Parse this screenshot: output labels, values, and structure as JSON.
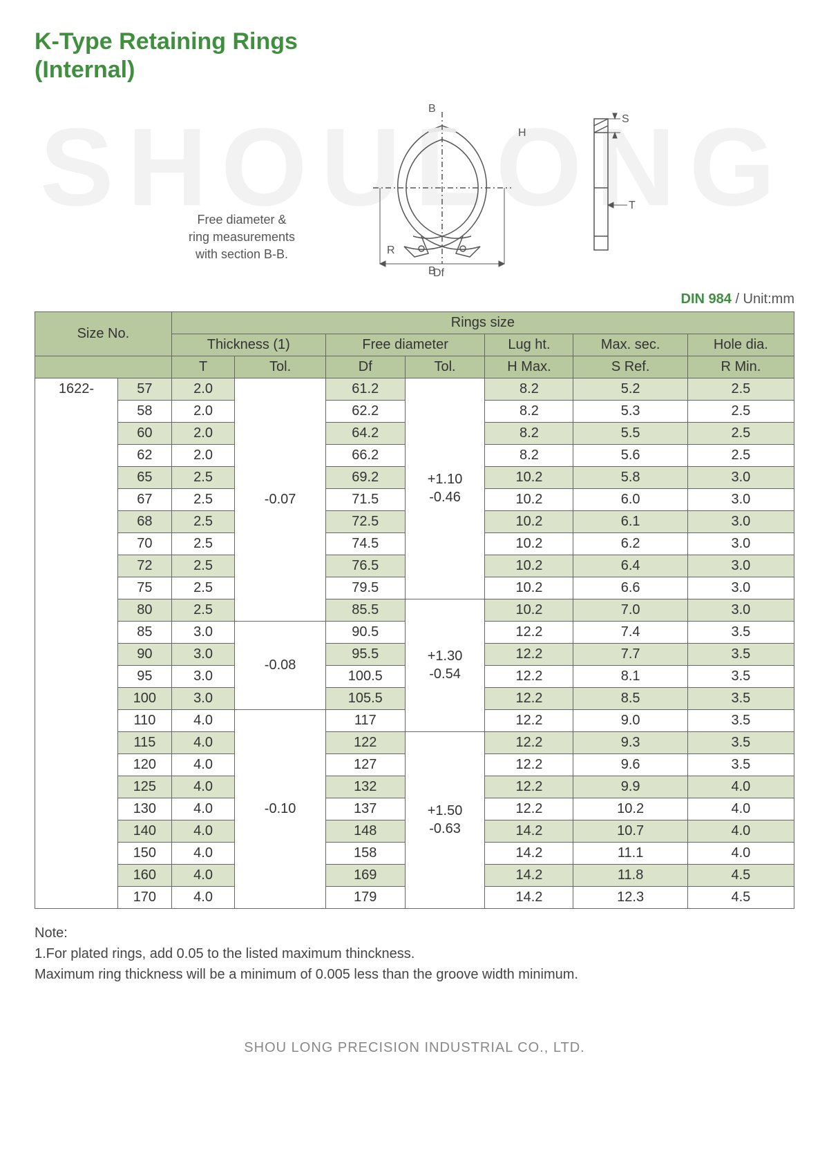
{
  "title_line1": "K-Type Retaining Rings",
  "title_line2": "(Internal)",
  "watermark": "SHOULONG",
  "diagram": {
    "caption_l1": "Free diameter &",
    "caption_l2": "ring measurements",
    "caption_l3": "with section B-B.",
    "labels": {
      "B": "B",
      "H": "H",
      "S": "S",
      "T": "T",
      "R": "R",
      "Df": "Df"
    }
  },
  "standard": {
    "din": "DIN 984",
    "unit": "/ Unit:mm"
  },
  "table": {
    "header": {
      "size_no": "Size No.",
      "rings_size": "Rings size",
      "thickness": "Thickness (1)",
      "free_dia": "Free diameter",
      "lug_ht": "Lug ht.",
      "max_sec": "Max. sec.",
      "hole_dia": "Hole dia.",
      "T": "T",
      "Tol1": "Tol.",
      "Df": "Df",
      "Tol2": "Tol.",
      "H": "H Max.",
      "S": "S Ref.",
      "R": "R Min."
    },
    "prefix": "1622-",
    "rows": [
      {
        "n": "57",
        "T": "2.0",
        "Df": "61.2",
        "H": "8.2",
        "S": "5.2",
        "R": "2.5"
      },
      {
        "n": "58",
        "T": "2.0",
        "Df": "62.2",
        "H": "8.2",
        "S": "5.3",
        "R": "2.5"
      },
      {
        "n": "60",
        "T": "2.0",
        "Df": "64.2",
        "H": "8.2",
        "S": "5.5",
        "R": "2.5"
      },
      {
        "n": "62",
        "T": "2.0",
        "Df": "66.2",
        "H": "8.2",
        "S": "5.6",
        "R": "2.5"
      },
      {
        "n": "65",
        "T": "2.5",
        "Df": "69.2",
        "H": "10.2",
        "S": "5.8",
        "R": "3.0"
      },
      {
        "n": "67",
        "T": "2.5",
        "Df": "71.5",
        "H": "10.2",
        "S": "6.0",
        "R": "3.0"
      },
      {
        "n": "68",
        "T": "2.5",
        "Df": "72.5",
        "H": "10.2",
        "S": "6.1",
        "R": "3.0"
      },
      {
        "n": "70",
        "T": "2.5",
        "Df": "74.5",
        "H": "10.2",
        "S": "6.2",
        "R": "3.0"
      },
      {
        "n": "72",
        "T": "2.5",
        "Df": "76.5",
        "H": "10.2",
        "S": "6.4",
        "R": "3.0"
      },
      {
        "n": "75",
        "T": "2.5",
        "Df": "79.5",
        "H": "10.2",
        "S": "6.6",
        "R": "3.0"
      },
      {
        "n": "80",
        "T": "2.5",
        "Df": "85.5",
        "H": "10.2",
        "S": "7.0",
        "R": "3.0"
      },
      {
        "n": "85",
        "T": "3.0",
        "Df": "90.5",
        "H": "12.2",
        "S": "7.4",
        "R": "3.5"
      },
      {
        "n": "90",
        "T": "3.0",
        "Df": "95.5",
        "H": "12.2",
        "S": "7.7",
        "R": "3.5"
      },
      {
        "n": "95",
        "T": "3.0",
        "Df": "100.5",
        "H": "12.2",
        "S": "8.1",
        "R": "3.5"
      },
      {
        "n": "100",
        "T": "3.0",
        "Df": "105.5",
        "H": "12.2",
        "S": "8.5",
        "R": "3.5"
      },
      {
        "n": "110",
        "T": "4.0",
        "Df": "117",
        "H": "12.2",
        "S": "9.0",
        "R": "3.5"
      },
      {
        "n": "115",
        "T": "4.0",
        "Df": "122",
        "H": "12.2",
        "S": "9.3",
        "R": "3.5"
      },
      {
        "n": "120",
        "T": "4.0",
        "Df": "127",
        "H": "12.2",
        "S": "9.6",
        "R": "3.5"
      },
      {
        "n": "125",
        "T": "4.0",
        "Df": "132",
        "H": "12.2",
        "S": "9.9",
        "R": "4.0"
      },
      {
        "n": "130",
        "T": "4.0",
        "Df": "137",
        "H": "12.2",
        "S": "10.2",
        "R": "4.0"
      },
      {
        "n": "140",
        "T": "4.0",
        "Df": "148",
        "H": "14.2",
        "S": "10.7",
        "R": "4.0"
      },
      {
        "n": "150",
        "T": "4.0",
        "Df": "158",
        "H": "14.2",
        "S": "11.1",
        "R": "4.0"
      },
      {
        "n": "160",
        "T": "4.0",
        "Df": "169",
        "H": "14.2",
        "S": "11.8",
        "R": "4.5"
      },
      {
        "n": "170",
        "T": "4.0",
        "Df": "179",
        "H": "14.2",
        "S": "12.3",
        "R": "4.5"
      }
    ],
    "t_tol_groups": [
      {
        "span": 11,
        "val": "-0.07"
      },
      {
        "span": 4,
        "val": "-0.08"
      },
      {
        "span": 9,
        "val": "-0.10"
      }
    ],
    "df_tol_groups": [
      {
        "span": 10,
        "top": "+1.10",
        "bot": "-0.46"
      },
      {
        "span": 6,
        "top": "+1.30",
        "bot": "-0.54"
      },
      {
        "span": 8,
        "top": "+1.50",
        "bot": "-0.63"
      }
    ]
  },
  "notes": {
    "heading": "Note:",
    "line1": "1.For plated rings, add 0.05 to the listed maximum thinckness.",
    "line2": "Maximum ring thickness will be a minimum of 0.005 less than the groove width minimum."
  },
  "footer": "SHOU LONG PRECISION INDUSTRIAL CO., LTD."
}
